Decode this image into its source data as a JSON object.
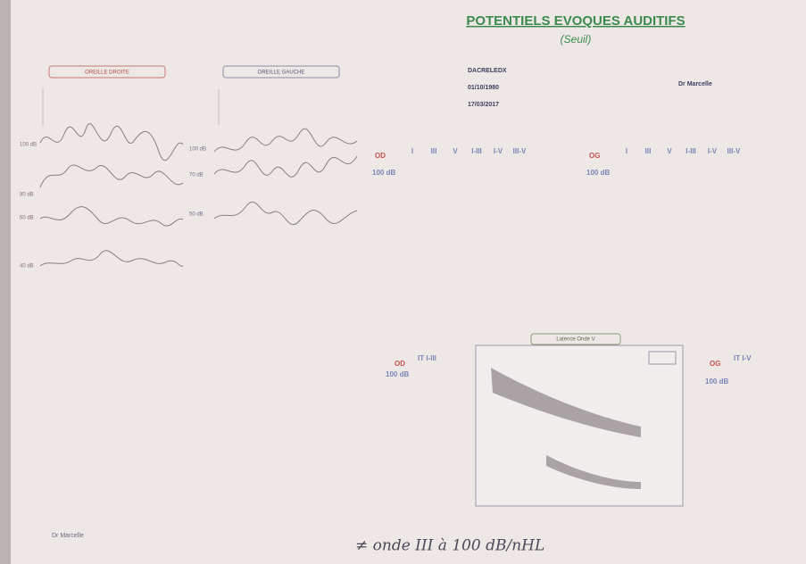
{
  "header": {
    "title": "POTENTIELS EVOQUES AUDITIFS",
    "subtitle": "(Seuil)"
  },
  "patient": {
    "name": "DACRELEDX",
    "birth": "01/10/1980",
    "date": "17/03/2017",
    "doctor": "Dr Marcelle"
  },
  "right_ear": {
    "label": "OREILLE DROITE",
    "traces": [
      "100 dB",
      "80 dB",
      "60 dB",
      "40 dB"
    ]
  },
  "left_ear": {
    "label": "OREILLE GAUCHE",
    "traces": [
      "100 dB",
      "70 dB",
      "50 dB"
    ]
  },
  "tables": [
    {
      "ear": "OD",
      "level": "100 dB",
      "columns": [
        "I",
        "III",
        "V",
        "I-III",
        "I-V",
        "III-V"
      ]
    },
    {
      "ear": "OG",
      "level": "100 dB",
      "columns": [
        "I",
        "III",
        "V",
        "I-III",
        "I-V",
        "III-V"
      ]
    }
  ],
  "interpeak": [
    {
      "ear": "OD",
      "level": "100 dB",
      "label": "IT I-III"
    },
    {
      "ear": "OG",
      "level": "100 dB",
      "label": "IT I-V"
    }
  ],
  "graph": {
    "title": "Latence Onde V"
  },
  "footer": {
    "doctor": "Dr Marcelle",
    "handwriting": "≠ onde III à 100 dB/nHL"
  }
}
